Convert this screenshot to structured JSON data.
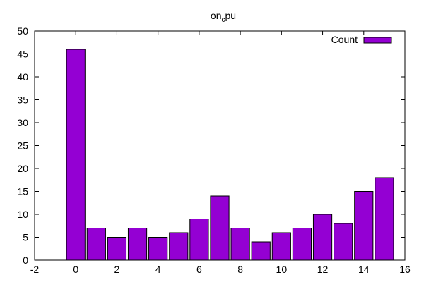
{
  "chart_data": {
    "type": "bar",
    "title": {
      "main": "on",
      "subscript": "c",
      "suffix": "pu"
    },
    "xlabel": "",
    "ylabel": "",
    "xlim": [
      -2,
      16
    ],
    "ylim": [
      0,
      50
    ],
    "xticks": [
      -2,
      0,
      2,
      4,
      6,
      8,
      10,
      12,
      14,
      16
    ],
    "yticks": [
      0,
      5,
      10,
      15,
      20,
      25,
      30,
      35,
      40,
      45,
      50
    ],
    "bar_width": 0.9,
    "categories": [
      0,
      1,
      2,
      3,
      4,
      5,
      6,
      7,
      8,
      9,
      10,
      11,
      12,
      13,
      14,
      15
    ],
    "series": [
      {
        "name": "Count",
        "color": "#9400d3",
        "values": [
          46,
          7,
          5,
          7,
          5,
          6,
          9,
          14,
          7,
          4,
          6,
          7,
          10,
          8,
          15,
          18
        ]
      }
    ],
    "legend": {
      "position": "top-right",
      "entries": [
        "Count"
      ]
    },
    "grid": false
  }
}
